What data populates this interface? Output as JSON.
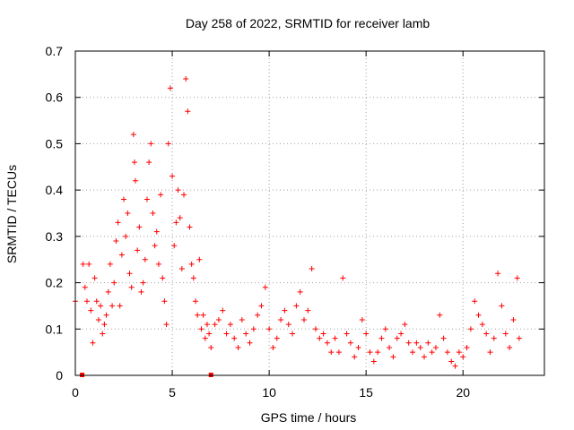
{
  "chart_data": {
    "type": "scatter",
    "title": "Day 258 of 2022, SRMTID for receiver lamb",
    "xlabel": "GPS time / hours",
    "ylabel": "SRMTID / TECUs",
    "xlim": [
      0,
      24.2
    ],
    "ylim": [
      0,
      0.7
    ],
    "x_ticks": [
      0,
      5,
      10,
      15,
      20
    ],
    "y_ticks": [
      0,
      0.1,
      0.2,
      0.3,
      0.4,
      0.5,
      0.6,
      0.7
    ],
    "grid": true,
    "marker": "+",
    "color": "#ff0000",
    "zero_markers": [
      0.35,
      7.0
    ],
    "series": [
      {
        "name": "SRMTID",
        "points": [
          [
            0.0,
            0.16
          ],
          [
            0.4,
            0.24
          ],
          [
            0.5,
            0.19
          ],
          [
            0.6,
            0.16
          ],
          [
            0.7,
            0.24
          ],
          [
            0.8,
            0.14
          ],
          [
            0.9,
            0.07
          ],
          [
            1.0,
            0.21
          ],
          [
            1.1,
            0.16
          ],
          [
            1.2,
            0.12
          ],
          [
            1.3,
            0.15
          ],
          [
            1.4,
            0.09
          ],
          [
            1.5,
            0.11
          ],
          [
            1.6,
            0.13
          ],
          [
            1.7,
            0.18
          ],
          [
            1.8,
            0.24
          ],
          [
            1.9,
            0.15
          ],
          [
            2.0,
            0.2
          ],
          [
            2.1,
            0.29
          ],
          [
            2.2,
            0.33
          ],
          [
            2.3,
            0.15
          ],
          [
            2.4,
            0.26
          ],
          [
            2.5,
            0.38
          ],
          [
            2.6,
            0.3
          ],
          [
            2.7,
            0.35
          ],
          [
            2.8,
            0.22
          ],
          [
            2.9,
            0.19
          ],
          [
            3.0,
            0.52
          ],
          [
            3.05,
            0.46
          ],
          [
            3.1,
            0.42
          ],
          [
            3.2,
            0.27
          ],
          [
            3.3,
            0.32
          ],
          [
            3.4,
            0.18
          ],
          [
            3.5,
            0.2
          ],
          [
            3.6,
            0.25
          ],
          [
            3.7,
            0.38
          ],
          [
            3.8,
            0.46
          ],
          [
            3.9,
            0.5
          ],
          [
            4.0,
            0.35
          ],
          [
            4.1,
            0.28
          ],
          [
            4.2,
            0.31
          ],
          [
            4.3,
            0.24
          ],
          [
            4.4,
            0.39
          ],
          [
            4.5,
            0.21
          ],
          [
            4.6,
            0.16
          ],
          [
            4.7,
            0.11
          ],
          [
            4.8,
            0.5
          ],
          [
            4.9,
            0.62
          ],
          [
            5.0,
            0.43
          ],
          [
            5.1,
            0.28
          ],
          [
            5.2,
            0.33
          ],
          [
            5.3,
            0.4
          ],
          [
            5.4,
            0.34
          ],
          [
            5.5,
            0.23
          ],
          [
            5.6,
            0.39
          ],
          [
            5.7,
            0.64
          ],
          [
            5.8,
            0.57
          ],
          [
            5.9,
            0.32
          ],
          [
            6.0,
            0.24
          ],
          [
            6.1,
            0.21
          ],
          [
            6.2,
            0.16
          ],
          [
            6.3,
            0.13
          ],
          [
            6.4,
            0.25
          ],
          [
            6.5,
            0.1
          ],
          [
            6.6,
            0.13
          ],
          [
            6.7,
            0.08
          ],
          [
            6.8,
            0.11
          ],
          [
            6.9,
            0.09
          ],
          [
            7.0,
            0.06
          ],
          [
            7.2,
            0.11
          ],
          [
            7.4,
            0.12
          ],
          [
            7.6,
            0.14
          ],
          [
            7.8,
            0.09
          ],
          [
            8.0,
            0.11
          ],
          [
            8.2,
            0.08
          ],
          [
            8.4,
            0.06
          ],
          [
            8.6,
            0.12
          ],
          [
            8.8,
            0.09
          ],
          [
            9.0,
            0.07
          ],
          [
            9.2,
            0.1
          ],
          [
            9.4,
            0.13
          ],
          [
            9.6,
            0.15
          ],
          [
            9.8,
            0.19
          ],
          [
            10.0,
            0.1
          ],
          [
            10.2,
            0.06
          ],
          [
            10.4,
            0.08
          ],
          [
            10.6,
            0.12
          ],
          [
            10.8,
            0.14
          ],
          [
            11.0,
            0.11
          ],
          [
            11.2,
            0.09
          ],
          [
            11.4,
            0.15
          ],
          [
            11.6,
            0.18
          ],
          [
            11.8,
            0.12
          ],
          [
            12.0,
            0.14
          ],
          [
            12.2,
            0.23
          ],
          [
            12.4,
            0.1
          ],
          [
            12.6,
            0.08
          ],
          [
            12.8,
            0.09
          ],
          [
            13.0,
            0.07
          ],
          [
            13.2,
            0.05
          ],
          [
            13.4,
            0.08
          ],
          [
            13.6,
            0.05
          ],
          [
            13.8,
            0.21
          ],
          [
            14.0,
            0.09
          ],
          [
            14.2,
            0.07
          ],
          [
            14.4,
            0.04
          ],
          [
            14.6,
            0.06
          ],
          [
            14.8,
            0.12
          ],
          [
            15.0,
            0.09
          ],
          [
            15.2,
            0.05
          ],
          [
            15.4,
            0.03
          ],
          [
            15.6,
            0.05
          ],
          [
            15.8,
            0.08
          ],
          [
            16.0,
            0.1
          ],
          [
            16.2,
            0.06
          ],
          [
            16.4,
            0.04
          ],
          [
            16.6,
            0.08
          ],
          [
            16.8,
            0.09
          ],
          [
            17.0,
            0.11
          ],
          [
            17.2,
            0.07
          ],
          [
            17.4,
            0.05
          ],
          [
            17.6,
            0.07
          ],
          [
            17.8,
            0.06
          ],
          [
            18.0,
            0.04
          ],
          [
            18.2,
            0.07
          ],
          [
            18.4,
            0.05
          ],
          [
            18.6,
            0.06
          ],
          [
            18.8,
            0.13
          ],
          [
            19.0,
            0.08
          ],
          [
            19.2,
            0.05
          ],
          [
            19.4,
            0.03
          ],
          [
            19.6,
            0.02
          ],
          [
            19.8,
            0.05
          ],
          [
            20.0,
            0.04
          ],
          [
            20.2,
            0.06
          ],
          [
            20.4,
            0.1
          ],
          [
            20.6,
            0.16
          ],
          [
            20.8,
            0.13
          ],
          [
            21.0,
            0.11
          ],
          [
            21.2,
            0.09
          ],
          [
            21.4,
            0.05
          ],
          [
            21.6,
            0.08
          ],
          [
            21.8,
            0.22
          ],
          [
            22.0,
            0.15
          ],
          [
            22.2,
            0.09
          ],
          [
            22.4,
            0.06
          ],
          [
            22.6,
            0.12
          ],
          [
            22.8,
            0.21
          ],
          [
            22.9,
            0.08
          ]
        ]
      }
    ]
  }
}
